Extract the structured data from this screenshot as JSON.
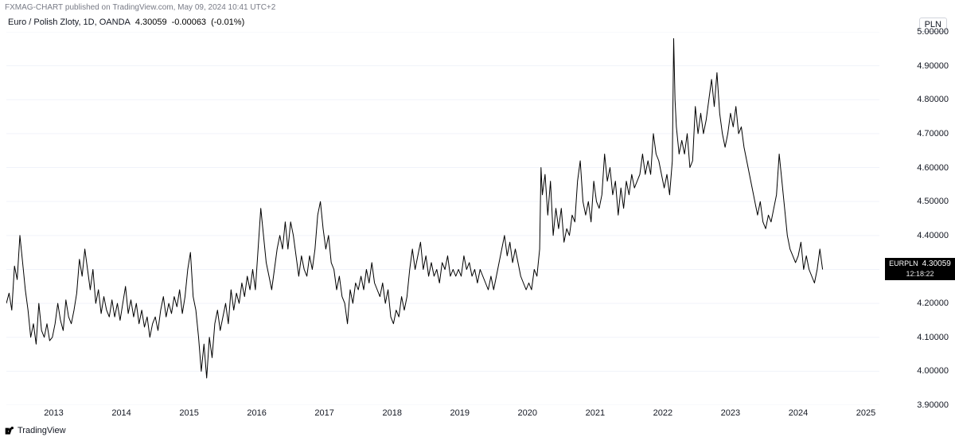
{
  "header": {
    "publisher": "FXMAG-CHART",
    "published_on": "TradingView.com",
    "date": "May 09, 2024",
    "time": "10:41",
    "tz": "UTC+2"
  },
  "legend": {
    "title": "Euro / Polish Zloty, 1D, OANDA",
    "price": "4.30059",
    "change": "-0.00063",
    "change_pct": "(-0.01%)"
  },
  "currency_badge": "PLN",
  "price_tag": {
    "symbol": "EURPLN",
    "value": "4.30059",
    "countdown": "12:18:22"
  },
  "bottom_brand": "TradingView",
  "chart": {
    "type": "line",
    "line_color": "#000000",
    "line_width": 1,
    "background_color": "#ffffff",
    "grid_color": "#f0f3fa",
    "ylim": [
      3.9,
      5.0
    ],
    "y_ticks": [
      "3.90000",
      "4.00000",
      "4.10000",
      "4.20000",
      "4.30000",
      "4.40000",
      "4.50000",
      "4.60000",
      "4.70000",
      "4.80000",
      "4.90000",
      "5.00000"
    ],
    "x_years": [
      2013,
      2014,
      2015,
      2016,
      2017,
      2018,
      2019,
      2020,
      2021,
      2022,
      2023,
      2024,
      2025
    ],
    "x_range": [
      2012.3,
      2025.2
    ],
    "last_value": 4.30059,
    "series": [
      [
        2012.3,
        4.2
      ],
      [
        2012.34,
        4.23
      ],
      [
        2012.38,
        4.18
      ],
      [
        2012.42,
        4.31
      ],
      [
        2012.46,
        4.27
      ],
      [
        2012.5,
        4.4
      ],
      [
        2012.55,
        4.3
      ],
      [
        2012.58,
        4.24
      ],
      [
        2012.62,
        4.18
      ],
      [
        2012.66,
        4.1
      ],
      [
        2012.7,
        4.14
      ],
      [
        2012.74,
        4.08
      ],
      [
        2012.78,
        4.2
      ],
      [
        2012.82,
        4.12
      ],
      [
        2012.86,
        4.1
      ],
      [
        2012.9,
        4.14
      ],
      [
        2012.94,
        4.09
      ],
      [
        2012.98,
        4.1
      ],
      [
        2013.02,
        4.14
      ],
      [
        2013.06,
        4.2
      ],
      [
        2013.1,
        4.15
      ],
      [
        2013.14,
        4.12
      ],
      [
        2013.18,
        4.21
      ],
      [
        2013.22,
        4.16
      ],
      [
        2013.26,
        4.14
      ],
      [
        2013.3,
        4.18
      ],
      [
        2013.34,
        4.23
      ],
      [
        2013.38,
        4.33
      ],
      [
        2013.42,
        4.28
      ],
      [
        2013.46,
        4.36
      ],
      [
        2013.5,
        4.3
      ],
      [
        2013.54,
        4.24
      ],
      [
        2013.58,
        4.3
      ],
      [
        2013.62,
        4.2
      ],
      [
        2013.66,
        4.24
      ],
      [
        2013.7,
        4.17
      ],
      [
        2013.74,
        4.22
      ],
      [
        2013.78,
        4.18
      ],
      [
        2013.82,
        4.16
      ],
      [
        2013.86,
        4.21
      ],
      [
        2013.9,
        4.16
      ],
      [
        2013.94,
        4.2
      ],
      [
        2013.98,
        4.15
      ],
      [
        2014.02,
        4.2
      ],
      [
        2014.06,
        4.25
      ],
      [
        2014.1,
        4.17
      ],
      [
        2014.14,
        4.21
      ],
      [
        2014.18,
        4.16
      ],
      [
        2014.22,
        4.2
      ],
      [
        2014.26,
        4.14
      ],
      [
        2014.3,
        4.18
      ],
      [
        2014.34,
        4.13
      ],
      [
        2014.38,
        4.16
      ],
      [
        2014.42,
        4.1
      ],
      [
        2014.46,
        4.14
      ],
      [
        2014.5,
        4.16
      ],
      [
        2014.54,
        4.12
      ],
      [
        2014.58,
        4.18
      ],
      [
        2014.62,
        4.22
      ],
      [
        2014.66,
        4.16
      ],
      [
        2014.7,
        4.2
      ],
      [
        2014.74,
        4.17
      ],
      [
        2014.78,
        4.22
      ],
      [
        2014.82,
        4.19
      ],
      [
        2014.86,
        4.24
      ],
      [
        2014.9,
        4.17
      ],
      [
        2014.94,
        4.22
      ],
      [
        2014.98,
        4.3
      ],
      [
        2015.02,
        4.35
      ],
      [
        2015.06,
        4.22
      ],
      [
        2015.1,
        4.18
      ],
      [
        2015.14,
        4.1
      ],
      [
        2015.18,
        4.0
      ],
      [
        2015.22,
        4.08
      ],
      [
        2015.26,
        3.98
      ],
      [
        2015.3,
        4.1
      ],
      [
        2015.34,
        4.04
      ],
      [
        2015.38,
        4.14
      ],
      [
        2015.42,
        4.18
      ],
      [
        2015.46,
        4.12
      ],
      [
        2015.5,
        4.16
      ],
      [
        2015.54,
        4.2
      ],
      [
        2015.58,
        4.14
      ],
      [
        2015.62,
        4.24
      ],
      [
        2015.66,
        4.18
      ],
      [
        2015.7,
        4.23
      ],
      [
        2015.74,
        4.2
      ],
      [
        2015.78,
        4.26
      ],
      [
        2015.82,
        4.22
      ],
      [
        2015.86,
        4.28
      ],
      [
        2015.9,
        4.24
      ],
      [
        2015.94,
        4.3
      ],
      [
        2015.98,
        4.24
      ],
      [
        2016.02,
        4.36
      ],
      [
        2016.06,
        4.48
      ],
      [
        2016.1,
        4.4
      ],
      [
        2016.14,
        4.32
      ],
      [
        2016.18,
        4.28
      ],
      [
        2016.22,
        4.24
      ],
      [
        2016.26,
        4.3
      ],
      [
        2016.3,
        4.36
      ],
      [
        2016.34,
        4.4
      ],
      [
        2016.38,
        4.36
      ],
      [
        2016.42,
        4.44
      ],
      [
        2016.46,
        4.36
      ],
      [
        2016.5,
        4.44
      ],
      [
        2016.54,
        4.4
      ],
      [
        2016.58,
        4.34
      ],
      [
        2016.62,
        4.28
      ],
      [
        2016.66,
        4.34
      ],
      [
        2016.7,
        4.3
      ],
      [
        2016.74,
        4.28
      ],
      [
        2016.78,
        4.34
      ],
      [
        2016.82,
        4.3
      ],
      [
        2016.86,
        4.36
      ],
      [
        2016.9,
        4.46
      ],
      [
        2016.94,
        4.5
      ],
      [
        2016.98,
        4.42
      ],
      [
        2017.02,
        4.36
      ],
      [
        2017.06,
        4.4
      ],
      [
        2017.1,
        4.32
      ],
      [
        2017.14,
        4.3
      ],
      [
        2017.18,
        4.24
      ],
      [
        2017.22,
        4.28
      ],
      [
        2017.26,
        4.22
      ],
      [
        2017.3,
        4.2
      ],
      [
        2017.34,
        4.14
      ],
      [
        2017.38,
        4.24
      ],
      [
        2017.42,
        4.2
      ],
      [
        2017.46,
        4.26
      ],
      [
        2017.5,
        4.24
      ],
      [
        2017.54,
        4.28
      ],
      [
        2017.58,
        4.24
      ],
      [
        2017.62,
        4.3
      ],
      [
        2017.66,
        4.26
      ],
      [
        2017.7,
        4.32
      ],
      [
        2017.74,
        4.26
      ],
      [
        2017.78,
        4.24
      ],
      [
        2017.82,
        4.22
      ],
      [
        2017.86,
        4.26
      ],
      [
        2017.9,
        4.2
      ],
      [
        2017.94,
        4.24
      ],
      [
        2017.98,
        4.16
      ],
      [
        2018.02,
        4.14
      ],
      [
        2018.06,
        4.18
      ],
      [
        2018.1,
        4.16
      ],
      [
        2018.14,
        4.22
      ],
      [
        2018.18,
        4.18
      ],
      [
        2018.22,
        4.22
      ],
      [
        2018.26,
        4.3
      ],
      [
        2018.3,
        4.36
      ],
      [
        2018.34,
        4.3
      ],
      [
        2018.38,
        4.34
      ],
      [
        2018.42,
        4.38
      ],
      [
        2018.46,
        4.3
      ],
      [
        2018.5,
        4.34
      ],
      [
        2018.54,
        4.28
      ],
      [
        2018.58,
        4.32
      ],
      [
        2018.62,
        4.28
      ],
      [
        2018.66,
        4.3
      ],
      [
        2018.7,
        4.26
      ],
      [
        2018.74,
        4.32
      ],
      [
        2018.78,
        4.3
      ],
      [
        2018.82,
        4.34
      ],
      [
        2018.86,
        4.28
      ],
      [
        2018.9,
        4.3
      ],
      [
        2018.94,
        4.28
      ],
      [
        2018.98,
        4.3
      ],
      [
        2019.02,
        4.28
      ],
      [
        2019.06,
        4.34
      ],
      [
        2019.1,
        4.3
      ],
      [
        2019.14,
        4.32
      ],
      [
        2019.18,
        4.28
      ],
      [
        2019.22,
        4.3
      ],
      [
        2019.26,
        4.26
      ],
      [
        2019.3,
        4.3
      ],
      [
        2019.34,
        4.28
      ],
      [
        2019.38,
        4.26
      ],
      [
        2019.42,
        4.24
      ],
      [
        2019.46,
        4.28
      ],
      [
        2019.5,
        4.24
      ],
      [
        2019.54,
        4.28
      ],
      [
        2019.58,
        4.32
      ],
      [
        2019.62,
        4.36
      ],
      [
        2019.66,
        4.4
      ],
      [
        2019.7,
        4.34
      ],
      [
        2019.74,
        4.38
      ],
      [
        2019.78,
        4.32
      ],
      [
        2019.82,
        4.36
      ],
      [
        2019.86,
        4.32
      ],
      [
        2019.9,
        4.28
      ],
      [
        2019.94,
        4.26
      ],
      [
        2019.98,
        4.24
      ],
      [
        2020.02,
        4.26
      ],
      [
        2020.06,
        4.24
      ],
      [
        2020.1,
        4.3
      ],
      [
        2020.14,
        4.28
      ],
      [
        2020.18,
        4.36
      ],
      [
        2020.2,
        4.6
      ],
      [
        2020.22,
        4.52
      ],
      [
        2020.26,
        4.58
      ],
      [
        2020.3,
        4.46
      ],
      [
        2020.34,
        4.56
      ],
      [
        2020.38,
        4.4
      ],
      [
        2020.42,
        4.48
      ],
      [
        2020.46,
        4.42
      ],
      [
        2020.5,
        4.48
      ],
      [
        2020.54,
        4.38
      ],
      [
        2020.58,
        4.42
      ],
      [
        2020.62,
        4.4
      ],
      [
        2020.66,
        4.46
      ],
      [
        2020.7,
        4.44
      ],
      [
        2020.74,
        4.56
      ],
      [
        2020.78,
        4.62
      ],
      [
        2020.82,
        4.5
      ],
      [
        2020.86,
        4.46
      ],
      [
        2020.9,
        4.5
      ],
      [
        2020.94,
        4.44
      ],
      [
        2020.98,
        4.56
      ],
      [
        2021.02,
        4.5
      ],
      [
        2021.06,
        4.48
      ],
      [
        2021.1,
        4.52
      ],
      [
        2021.14,
        4.64
      ],
      [
        2021.18,
        4.56
      ],
      [
        2021.22,
        4.6
      ],
      [
        2021.26,
        4.52
      ],
      [
        2021.3,
        4.56
      ],
      [
        2021.34,
        4.46
      ],
      [
        2021.38,
        4.54
      ],
      [
        2021.42,
        4.48
      ],
      [
        2021.46,
        4.56
      ],
      [
        2021.5,
        4.52
      ],
      [
        2021.54,
        4.58
      ],
      [
        2021.58,
        4.54
      ],
      [
        2021.62,
        4.56
      ],
      [
        2021.66,
        4.58
      ],
      [
        2021.7,
        4.64
      ],
      [
        2021.74,
        4.58
      ],
      [
        2021.78,
        4.62
      ],
      [
        2021.82,
        4.58
      ],
      [
        2021.86,
        4.7
      ],
      [
        2021.9,
        4.64
      ],
      [
        2021.94,
        4.62
      ],
      [
        2021.98,
        4.58
      ],
      [
        2022.02,
        4.54
      ],
      [
        2022.06,
        4.58
      ],
      [
        2022.1,
        4.52
      ],
      [
        2022.14,
        4.62
      ],
      [
        2022.16,
        4.98
      ],
      [
        2022.18,
        4.8
      ],
      [
        2022.2,
        4.72
      ],
      [
        2022.24,
        4.64
      ],
      [
        2022.28,
        4.68
      ],
      [
        2022.32,
        4.64
      ],
      [
        2022.36,
        4.7
      ],
      [
        2022.4,
        4.6
      ],
      [
        2022.44,
        4.62
      ],
      [
        2022.48,
        4.78
      ],
      [
        2022.52,
        4.7
      ],
      [
        2022.56,
        4.76
      ],
      [
        2022.6,
        4.7
      ],
      [
        2022.64,
        4.74
      ],
      [
        2022.68,
        4.8
      ],
      [
        2022.72,
        4.86
      ],
      [
        2022.76,
        4.78
      ],
      [
        2022.8,
        4.88
      ],
      [
        2022.84,
        4.76
      ],
      [
        2022.88,
        4.7
      ],
      [
        2022.92,
        4.66
      ],
      [
        2022.96,
        4.7
      ],
      [
        2023.0,
        4.76
      ],
      [
        2023.04,
        4.72
      ],
      [
        2023.08,
        4.78
      ],
      [
        2023.12,
        4.7
      ],
      [
        2023.16,
        4.72
      ],
      [
        2023.2,
        4.66
      ],
      [
        2023.24,
        4.62
      ],
      [
        2023.28,
        4.58
      ],
      [
        2023.32,
        4.54
      ],
      [
        2023.36,
        4.5
      ],
      [
        2023.4,
        4.46
      ],
      [
        2023.44,
        4.5
      ],
      [
        2023.48,
        4.44
      ],
      [
        2023.52,
        4.42
      ],
      [
        2023.56,
        4.46
      ],
      [
        2023.6,
        4.44
      ],
      [
        2023.64,
        4.48
      ],
      [
        2023.68,
        4.52
      ],
      [
        2023.72,
        4.64
      ],
      [
        2023.76,
        4.56
      ],
      [
        2023.8,
        4.48
      ],
      [
        2023.84,
        4.4
      ],
      [
        2023.88,
        4.36
      ],
      [
        2023.92,
        4.34
      ],
      [
        2023.96,
        4.32
      ],
      [
        2024.0,
        4.34
      ],
      [
        2024.04,
        4.38
      ],
      [
        2024.08,
        4.3
      ],
      [
        2024.12,
        4.34
      ],
      [
        2024.16,
        4.3
      ],
      [
        2024.2,
        4.28
      ],
      [
        2024.24,
        4.26
      ],
      [
        2024.28,
        4.3
      ],
      [
        2024.32,
        4.36
      ],
      [
        2024.36,
        4.3
      ]
    ]
  }
}
